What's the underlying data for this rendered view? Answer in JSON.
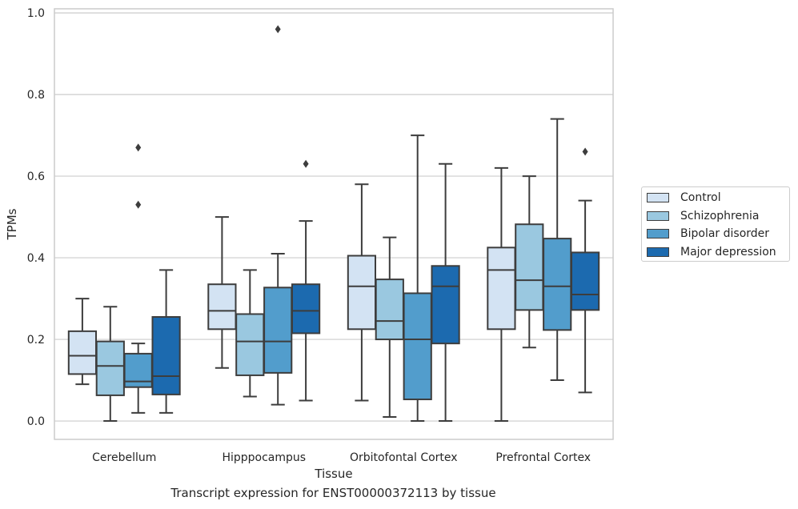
{
  "chart_data": {
    "type": "box",
    "title": "",
    "caption": "Transcript expression for ENST00000372113 by tissue",
    "xlabel": "Tissue",
    "ylabel": "TPMs",
    "ylim": [
      -0.045,
      1.01
    ],
    "yticks": [
      "0.0",
      "0.2",
      "0.4",
      "0.6",
      "0.8",
      "1.0"
    ],
    "grid": true,
    "legend_position": "right",
    "categories": [
      "Cerebellum",
      "Hipppocampus",
      "Orbitofontal Cortex",
      "Prefrontal Cortex"
    ],
    "series": [
      {
        "name": "Control",
        "color": "#d3e3f3",
        "boxes": [
          {
            "whislo": 0.09,
            "q1": 0.115,
            "med": 0.16,
            "q3": 0.22,
            "whishi": 0.3,
            "fliers": []
          },
          {
            "whislo": 0.13,
            "q1": 0.225,
            "med": 0.27,
            "q3": 0.335,
            "whishi": 0.5,
            "fliers": []
          },
          {
            "whislo": 0.05,
            "q1": 0.225,
            "med": 0.33,
            "q3": 0.405,
            "whishi": 0.58,
            "fliers": []
          },
          {
            "whislo": 0.0,
            "q1": 0.225,
            "med": 0.37,
            "q3": 0.425,
            "whishi": 0.62,
            "fliers": []
          }
        ]
      },
      {
        "name": "Schizophrenia",
        "color": "#9ac8e0",
        "boxes": [
          {
            "whislo": 0.0,
            "q1": 0.063,
            "med": 0.135,
            "q3": 0.195,
            "whishi": 0.28,
            "fliers": []
          },
          {
            "whislo": 0.06,
            "q1": 0.112,
            "med": 0.195,
            "q3": 0.262,
            "whishi": 0.37,
            "fliers": []
          },
          {
            "whislo": 0.01,
            "q1": 0.2,
            "med": 0.245,
            "q3": 0.347,
            "whishi": 0.45,
            "fliers": []
          },
          {
            "whislo": 0.18,
            "q1": 0.272,
            "med": 0.345,
            "q3": 0.482,
            "whishi": 0.6,
            "fliers": []
          }
        ]
      },
      {
        "name": "Bipolar disorder",
        "color": "#529dcc",
        "boxes": [
          {
            "whislo": 0.02,
            "q1": 0.083,
            "med": 0.097,
            "q3": 0.165,
            "whishi": 0.19,
            "fliers": [
              0.53,
              0.67
            ]
          },
          {
            "whislo": 0.04,
            "q1": 0.118,
            "med": 0.195,
            "q3": 0.327,
            "whishi": 0.41,
            "fliers": [
              0.96
            ]
          },
          {
            "whislo": 0.0,
            "q1": 0.053,
            "med": 0.2,
            "q3": 0.313,
            "whishi": 0.7,
            "fliers": []
          },
          {
            "whislo": 0.1,
            "q1": 0.223,
            "med": 0.33,
            "q3": 0.447,
            "whishi": 0.74,
            "fliers": []
          }
        ]
      },
      {
        "name": "Major depression",
        "color": "#1c6aaf",
        "boxes": [
          {
            "whislo": 0.02,
            "q1": 0.065,
            "med": 0.11,
            "q3": 0.255,
            "whishi": 0.37,
            "fliers": []
          },
          {
            "whislo": 0.05,
            "q1": 0.215,
            "med": 0.27,
            "q3": 0.335,
            "whishi": 0.49,
            "fliers": [
              0.63
            ]
          },
          {
            "whislo": 0.0,
            "q1": 0.19,
            "med": 0.33,
            "q3": 0.38,
            "whishi": 0.63,
            "fliers": []
          },
          {
            "whislo": 0.07,
            "q1": 0.272,
            "med": 0.31,
            "q3": 0.413,
            "whishi": 0.54,
            "fliers": [
              0.66
            ]
          }
        ]
      }
    ]
  }
}
